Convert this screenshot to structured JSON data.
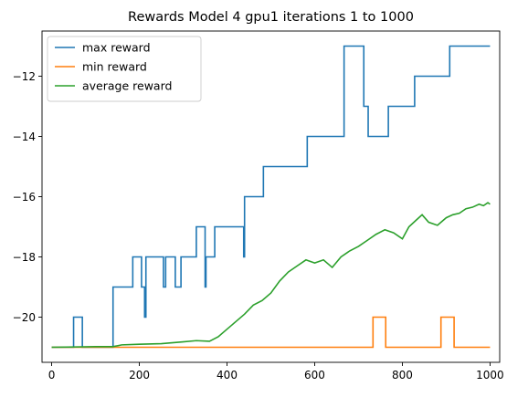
{
  "chart_data": {
    "type": "line",
    "title": "Rewards Model 4 gpu1 iterations 1 to 1000",
    "xlabel": "",
    "ylabel": "",
    "xlim": [
      -22,
      1022
    ],
    "ylim": [
      -21.5,
      -10.5
    ],
    "xticks": [
      0,
      200,
      400,
      600,
      800,
      1000
    ],
    "yticks": [
      -20,
      -18,
      -16,
      -14,
      -12
    ],
    "ytick_labels": [
      "−20",
      "−18",
      "−16",
      "−14",
      "−12"
    ],
    "grid": false,
    "legend_position": "top-left",
    "series": [
      {
        "name": "max reward",
        "color": "#1f77b4",
        "step": true,
        "points": [
          [
            0,
            -21
          ],
          [
            50,
            -21
          ],
          [
            50,
            -20
          ],
          [
            70,
            -20
          ],
          [
            70,
            -21
          ],
          [
            140,
            -21
          ],
          [
            140,
            -19
          ],
          [
            185,
            -19
          ],
          [
            185,
            -18
          ],
          [
            205,
            -18
          ],
          [
            205,
            -19
          ],
          [
            212,
            -19
          ],
          [
            212,
            -20
          ],
          [
            215,
            -20
          ],
          [
            215,
            -18
          ],
          [
            255,
            -18
          ],
          [
            255,
            -19
          ],
          [
            260,
            -19
          ],
          [
            260,
            -18
          ],
          [
            282,
            -18
          ],
          [
            282,
            -19
          ],
          [
            295,
            -19
          ],
          [
            295,
            -18
          ],
          [
            330,
            -18
          ],
          [
            330,
            -17
          ],
          [
            350,
            -17
          ],
          [
            350,
            -19
          ],
          [
            352,
            -19
          ],
          [
            352,
            -18
          ],
          [
            372,
            -18
          ],
          [
            372,
            -17
          ],
          [
            438,
            -17
          ],
          [
            438,
            -18
          ],
          [
            440,
            -18
          ],
          [
            440,
            -16
          ],
          [
            483,
            -16
          ],
          [
            483,
            -15
          ],
          [
            583,
            -15
          ],
          [
            583,
            -14
          ],
          [
            667,
            -14
          ],
          [
            667,
            -11
          ],
          [
            712,
            -11
          ],
          [
            712,
            -13
          ],
          [
            722,
            -13
          ],
          [
            722,
            -14
          ],
          [
            768,
            -14
          ],
          [
            768,
            -13
          ],
          [
            828,
            -13
          ],
          [
            828,
            -12
          ],
          [
            908,
            -12
          ],
          [
            908,
            -11
          ],
          [
            1000,
            -11
          ]
        ]
      },
      {
        "name": "min reward",
        "color": "#ff7f0e",
        "step": true,
        "points": [
          [
            0,
            -21
          ],
          [
            733,
            -21
          ],
          [
            733,
            -20
          ],
          [
            762,
            -20
          ],
          [
            762,
            -21
          ],
          [
            888,
            -21
          ],
          [
            888,
            -20
          ],
          [
            918,
            -20
          ],
          [
            918,
            -21
          ],
          [
            1000,
            -21
          ]
        ]
      },
      {
        "name": "average reward",
        "color": "#2ca02c",
        "step": false,
        "points": [
          [
            0,
            -21
          ],
          [
            100,
            -20.98
          ],
          [
            140,
            -20.98
          ],
          [
            160,
            -20.92
          ],
          [
            200,
            -20.9
          ],
          [
            250,
            -20.88
          ],
          [
            300,
            -20.82
          ],
          [
            330,
            -20.78
          ],
          [
            360,
            -20.8
          ],
          [
            380,
            -20.65
          ],
          [
            400,
            -20.4
          ],
          [
            420,
            -20.15
          ],
          [
            440,
            -19.9
          ],
          [
            460,
            -19.6
          ],
          [
            480,
            -19.45
          ],
          [
            500,
            -19.2
          ],
          [
            520,
            -18.8
          ],
          [
            540,
            -18.5
          ],
          [
            560,
            -18.3
          ],
          [
            580,
            -18.1
          ],
          [
            600,
            -18.2
          ],
          [
            620,
            -18.1
          ],
          [
            640,
            -18.35
          ],
          [
            660,
            -18.0
          ],
          [
            680,
            -17.8
          ],
          [
            700,
            -17.65
          ],
          [
            720,
            -17.45
          ],
          [
            740,
            -17.25
          ],
          [
            760,
            -17.1
          ],
          [
            780,
            -17.2
          ],
          [
            800,
            -17.4
          ],
          [
            815,
            -17.0
          ],
          [
            830,
            -16.8
          ],
          [
            845,
            -16.6
          ],
          [
            860,
            -16.85
          ],
          [
            880,
            -16.95
          ],
          [
            900,
            -16.7
          ],
          [
            915,
            -16.6
          ],
          [
            930,
            -16.55
          ],
          [
            945,
            -16.4
          ],
          [
            960,
            -16.35
          ],
          [
            975,
            -16.25
          ],
          [
            985,
            -16.3
          ],
          [
            995,
            -16.2
          ],
          [
            1000,
            -16.25
          ]
        ]
      }
    ]
  }
}
